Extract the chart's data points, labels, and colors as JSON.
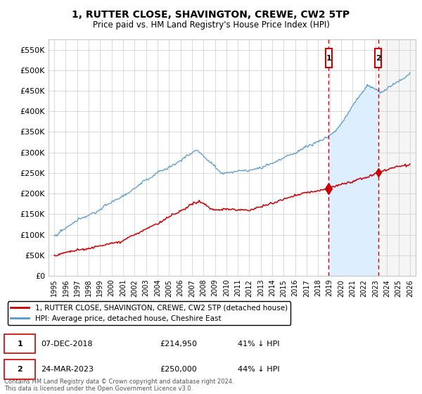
{
  "title": "1, RUTTER CLOSE, SHAVINGTON, CREWE, CW2 5TP",
  "subtitle": "Price paid vs. HM Land Registry's House Price Index (HPI)",
  "ylabel_ticks": [
    "£0",
    "£50K",
    "£100K",
    "£150K",
    "£200K",
    "£250K",
    "£300K",
    "£350K",
    "£400K",
    "£450K",
    "£500K",
    "£550K"
  ],
  "ytick_values": [
    0,
    50000,
    100000,
    150000,
    200000,
    250000,
    300000,
    350000,
    400000,
    450000,
    500000,
    550000
  ],
  "ylim": [
    0,
    575000
  ],
  "legend_line1": "1, RUTTER CLOSE, SHAVINGTON, CREWE, CW2 5TP (detached house)",
  "legend_line2": "HPI: Average price, detached house, Cheshire East",
  "color_red": "#cc0000",
  "color_blue": "#5599cc",
  "color_blue_fill": "#ddeeff",
  "footnote": "Contains HM Land Registry data © Crown copyright and database right 2024.\nThis data is licensed under the Open Government Licence v3.0.",
  "sale1_label": "1",
  "sale1_date": "07-DEC-2018",
  "sale1_price": "£214,950",
  "sale1_hpi": "41% ↓ HPI",
  "sale2_label": "2",
  "sale2_date": "24-MAR-2023",
  "sale2_price": "£250,000",
  "sale2_hpi": "44% ↓ HPI",
  "sale1_year": 2018.92,
  "sale1_value": 214950,
  "sale2_year": 2023.23,
  "sale2_value": 250000,
  "bg_color": "#ffffff",
  "grid_color": "#cccccc",
  "xlim_start": 1994.5,
  "xlim_end": 2026.5,
  "xticks": [
    1995,
    1996,
    1997,
    1998,
    1999,
    2000,
    2001,
    2002,
    2003,
    2004,
    2005,
    2006,
    2007,
    2008,
    2009,
    2010,
    2011,
    2012,
    2013,
    2014,
    2015,
    2016,
    2017,
    2018,
    2019,
    2020,
    2021,
    2022,
    2023,
    2024,
    2025,
    2026
  ]
}
